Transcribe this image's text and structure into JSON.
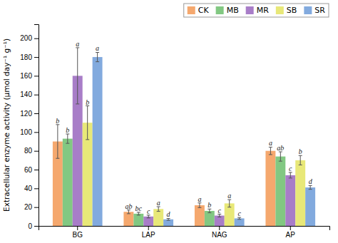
{
  "chart_data": {
    "type": "bar",
    "ylabel": "Extracellular enzyme activity (μmol day⁻¹ g⁻¹)",
    "categories": [
      "BG",
      "LAP",
      "NAG",
      "AP"
    ],
    "series": [
      {
        "name": "CK",
        "color": "#F5A86E",
        "values": [
          90,
          15,
          22,
          80
        ],
        "errors": [
          18,
          2,
          2.5,
          4
        ],
        "labels": [
          "b",
          "ab",
          "a",
          "a"
        ]
      },
      {
        "name": "MB",
        "color": "#82C882",
        "values": [
          93,
          13,
          16,
          74
        ],
        "errors": [
          5,
          1.5,
          2,
          5
        ],
        "labels": [
          "b",
          "bc",
          "b",
          "ab"
        ]
      },
      {
        "name": "MR",
        "color": "#A87DC8",
        "values": [
          160,
          10,
          11,
          54
        ],
        "errors": [
          30,
          1.5,
          1.5,
          3
        ],
        "labels": [
          "a",
          "c",
          "c",
          "c"
        ]
      },
      {
        "name": "SB",
        "color": "#E8E878",
        "values": [
          110,
          18,
          24,
          70
        ],
        "errors": [
          18,
          2.5,
          4,
          5
        ],
        "labels": [
          "b",
          "a",
          "a",
          "b"
        ]
      },
      {
        "name": "SR",
        "color": "#82AADE",
        "values": [
          180,
          7,
          8,
          41
        ],
        "errors": [
          5,
          1,
          1,
          2
        ],
        "labels": [
          "a",
          "d",
          "c",
          "d"
        ]
      }
    ],
    "ylim": [
      0,
      215
    ],
    "yticks": [
      0,
      20,
      40,
      60,
      80,
      100,
      120,
      140,
      160,
      180,
      200
    ],
    "grid": false,
    "legend": "top right"
  }
}
